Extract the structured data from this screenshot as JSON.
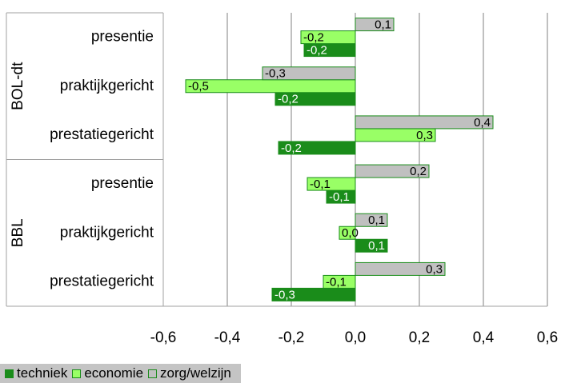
{
  "chart_data": {
    "type": "bar",
    "orientation": "horizontal",
    "groups": [
      {
        "name": "BOL-dt",
        "categories": [
          "presentie",
          "praktijkgericht",
          "prestatiegericht"
        ]
      },
      {
        "name": "BBL",
        "categories": [
          "presentie",
          "praktijkgericht",
          "prestatiegericht"
        ]
      }
    ],
    "series": [
      {
        "name": "techniek",
        "color": "#1a8c1a",
        "border": "#1a8c1a",
        "values": [
          -0.16,
          -0.25,
          -0.24,
          -0.09,
          0.1,
          -0.26
        ],
        "labels": [
          "-0,2",
          "-0,2",
          "-0,2",
          "-0,1",
          "0,1",
          "-0,3"
        ]
      },
      {
        "name": "economie",
        "color": "#99ff66",
        "border": "#1a8c1a",
        "values": [
          -0.17,
          -0.53,
          0.25,
          -0.15,
          -0.05,
          -0.1
        ],
        "labels": [
          "-0,2",
          "-0,5",
          "0,3",
          "-0,1",
          "0,0",
          "-0,1"
        ]
      },
      {
        "name": "zorg/welzijn",
        "color": "#c0c0c0",
        "border": "#1a8c1a",
        "values": [
          0.12,
          -0.29,
          0.43,
          0.23,
          0.1,
          0.28
        ],
        "labels": [
          "0,1",
          "-0,3",
          "0,4",
          "0,2",
          "0,1",
          "0,3"
        ]
      }
    ],
    "xlim": [
      -0.6,
      0.6
    ],
    "xticks": [
      "-0,6",
      "-0,4",
      "-0,2",
      "0,0",
      "0,2",
      "0,4",
      "0,6"
    ],
    "xtick_values": [
      -0.6,
      -0.4,
      -0.2,
      0,
      0.2,
      0.4,
      0.6
    ],
    "grid": true,
    "legend_position": "bottom-left",
    "title": "",
    "xlabel": "",
    "ylabel": ""
  }
}
